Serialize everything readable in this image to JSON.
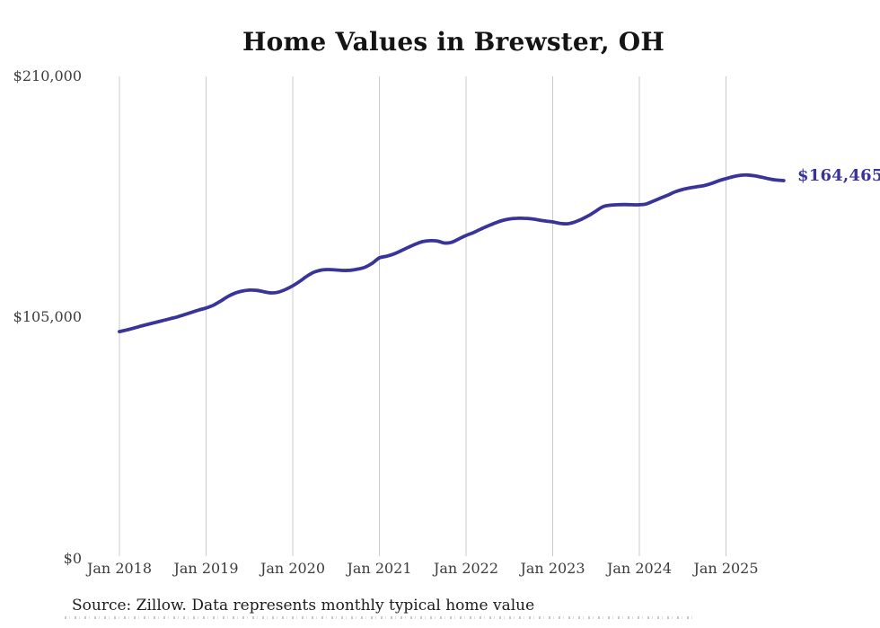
{
  "title": "Home Values in Brewster, OH",
  "end_label": "$164,465",
  "source_note": "Source: Zillow. Data represents monthly typical home value",
  "colors": {
    "line": "#39339a",
    "end_label": "#39339a",
    "grid": "#cbcbcb",
    "axis_text": "#3c3c3c",
    "title_text": "#141414"
  },
  "chart_data": {
    "type": "line",
    "title": "Home Values in Brewster, OH",
    "xlabel": "",
    "ylabel": "",
    "frequency": "monthly",
    "x_start": "2018-01",
    "x_end": "2025-09",
    "x_tick_labels": [
      "Jan 2018",
      "Jan 2019",
      "Jan 2020",
      "Jan 2021",
      "Jan 2022",
      "Jan 2023",
      "Jan 2024",
      "Jan 2025"
    ],
    "y_tick_labels": [
      "$210,000",
      "$105,000",
      "$0"
    ],
    "y_tick_values": [
      210000,
      105000,
      0
    ],
    "ylim": [
      0,
      210000
    ],
    "grid": "vertical-only",
    "legend": "none",
    "end_value": 164465,
    "end_value_label": "$164,465",
    "series": [
      {
        "name": "Typical home value",
        "values": [
          98500,
          99200,
          100000,
          100900,
          101700,
          102500,
          103300,
          104100,
          104900,
          105900,
          106900,
          107900,
          108800,
          110000,
          111800,
          113800,
          115300,
          116200,
          116600,
          116500,
          115900,
          115400,
          115700,
          116900,
          118500,
          120500,
          122800,
          124500,
          125400,
          125600,
          125400,
          125200,
          125300,
          125800,
          126600,
          128300,
          130700,
          131400,
          132400,
          133800,
          135300,
          136700,
          137800,
          138200,
          138100,
          137200,
          137500,
          139000,
          140500,
          141700,
          143200,
          144600,
          145900,
          147000,
          147700,
          148000,
          148000,
          147800,
          147300,
          146800,
          146400,
          145800,
          145600,
          146300,
          147600,
          149200,
          151200,
          153100,
          153700,
          153900,
          154000,
          153900,
          153900,
          154300,
          155600,
          156900,
          158200,
          159600,
          160600,
          161300,
          161800,
          162300,
          163200,
          164400,
          165300,
          166200,
          166800,
          166900,
          166500,
          165900,
          165200,
          164700,
          164465
        ]
      }
    ]
  }
}
